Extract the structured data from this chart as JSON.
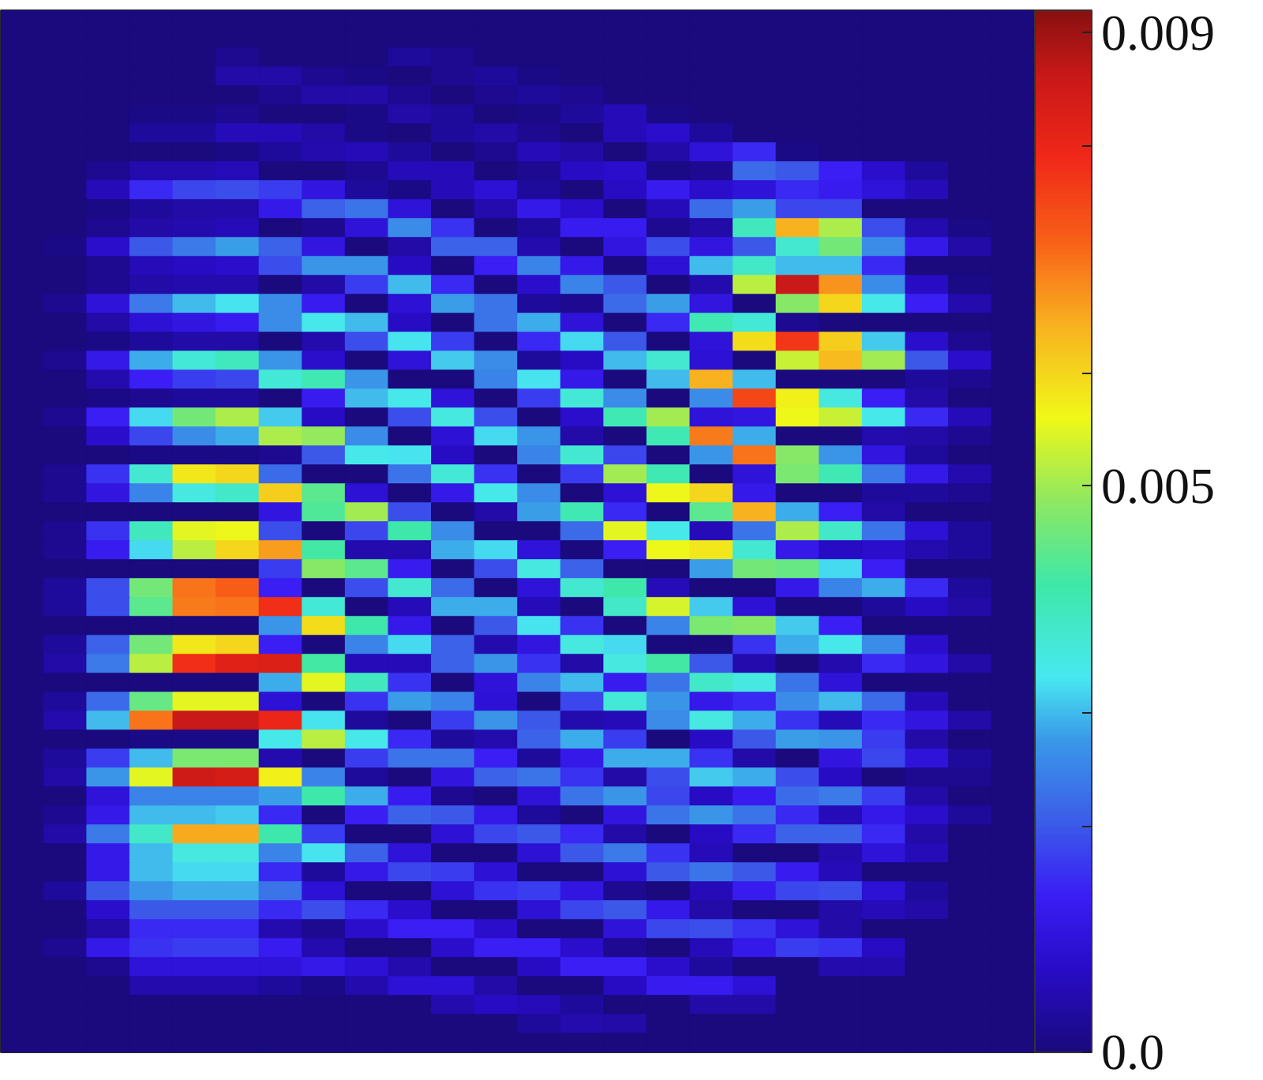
{
  "chart_data": {
    "type": "heatmap",
    "categories": [
      null,
      null,
      null,
      null,
      null,
      null,
      null,
      null,
      null,
      null,
      null,
      null,
      null,
      null,
      null,
      null,
      null,
      null,
      null,
      null,
      null,
      null,
      null,
      null
    ],
    "y_categories": [
      null,
      null,
      null,
      null,
      null,
      null,
      null,
      null,
      null,
      null,
      null,
      null,
      null,
      null,
      null,
      null,
      null,
      null,
      null,
      null,
      null,
      null,
      null,
      null,
      null,
      null,
      null,
      null,
      null,
      null,
      null,
      null,
      null,
      null,
      null,
      null,
      null,
      null,
      null,
      null,
      null,
      null,
      null,
      null,
      null,
      null,
      null,
      null,
      null,
      null,
      null,
      null,
      null,
      null,
      null
    ],
    "cells": [
      [
        0,
        0,
        0,
        0,
        0,
        0,
        0,
        0,
        0,
        0,
        0,
        0,
        0,
        0,
        0,
        0,
        0,
        0,
        0,
        0,
        0,
        0,
        0,
        0
      ],
      [
        0,
        0,
        0,
        0,
        0,
        0,
        0,
        0,
        0,
        0,
        0,
        0,
        0,
        0,
        0,
        0,
        0,
        0,
        0,
        0,
        0,
        0,
        0,
        0
      ],
      [
        0,
        0,
        0,
        0,
        0,
        0.0002,
        0,
        0,
        0,
        0.0003,
        0.0002,
        0,
        0,
        0,
        0,
        0,
        0,
        0,
        0,
        0,
        0,
        0,
        0,
        0
      ],
      [
        0,
        0,
        0,
        0,
        0,
        0.0004,
        0.0004,
        0.0002,
        0.0001,
        0,
        0.0002,
        0.0003,
        0.0001,
        0,
        0,
        0,
        0,
        0,
        0,
        0,
        0,
        0,
        0,
        0
      ],
      [
        0,
        0,
        0,
        0,
        0,
        0,
        0.0002,
        0.0004,
        0.0004,
        0.0002,
        0,
        0.0002,
        0.0003,
        0.0002,
        0,
        0,
        0,
        0,
        0,
        0,
        0,
        0,
        0,
        0
      ],
      [
        0,
        0,
        0,
        0.0001,
        0.0001,
        0.0002,
        0,
        0,
        0.0001,
        0.0004,
        0.0003,
        0,
        0.0001,
        0.0003,
        0.0006,
        0.0001,
        0,
        0,
        0,
        0,
        0,
        0,
        0,
        0
      ],
      [
        0,
        0,
        0,
        0.0003,
        0.0003,
        0.0006,
        0.0006,
        0.0004,
        0.0001,
        0,
        0.0003,
        0.0004,
        0.0002,
        0,
        0.0006,
        0.0008,
        0.0003,
        0,
        0,
        0,
        0,
        0,
        0,
        0
      ],
      [
        0,
        0,
        0,
        0,
        0,
        0.0001,
        0.0003,
        0.0005,
        0.0006,
        0.0003,
        0,
        0.0002,
        0.0006,
        0.0004,
        0,
        0.0004,
        0.001,
        0.0015,
        0.0001,
        0,
        0,
        0,
        0,
        0
      ],
      [
        0,
        0,
        0.0002,
        0.0005,
        0.0005,
        0.0006,
        0,
        0,
        0.0002,
        0.0006,
        0.0006,
        0,
        0.0002,
        0.0007,
        0.0008,
        0.0001,
        0.0002,
        0.0022,
        0.002,
        0.0014,
        0.0008,
        0.0003,
        0,
        0
      ],
      [
        0,
        0,
        0.0006,
        0.0015,
        0.0018,
        0.0019,
        0.0017,
        0.0011,
        0.0003,
        0.0001,
        0.0006,
        0.0009,
        0.0003,
        0,
        0.0007,
        0.0013,
        0.0008,
        0.001,
        0.0015,
        0.0013,
        0.001,
        0.0006,
        0,
        0
      ],
      [
        0,
        0,
        0.0001,
        0.0003,
        0.0004,
        0.0004,
        0.0012,
        0.0021,
        0.0023,
        0.001,
        0,
        0.0005,
        0.0012,
        0.0008,
        0,
        0.0006,
        0.0022,
        0.0028,
        0.0018,
        0.0018,
        0,
        0,
        0,
        0
      ],
      [
        0,
        0,
        0.0002,
        0.0004,
        0.0005,
        0.0006,
        0,
        0.0002,
        0.001,
        0.0026,
        0.0016,
        0,
        0.0003,
        0.0013,
        0.0013,
        0.0002,
        0.0004,
        0.0039,
        0.0064,
        0.0051,
        0.0019,
        0.0005,
        0.0001,
        0
      ],
      [
        0,
        0.0001,
        0.0008,
        0.002,
        0.0024,
        0.0028,
        0.0021,
        0.0011,
        0,
        0.0004,
        0.0021,
        0.0021,
        0.0005,
        0,
        0.0011,
        0.0019,
        0.0011,
        0.002,
        0.0037,
        0.0046,
        0.0026,
        0.0012,
        0.0004,
        0
      ],
      [
        0,
        0,
        0.0002,
        0.0006,
        0.0007,
        0.0008,
        0.0019,
        0.0027,
        0.0027,
        0.0007,
        0,
        0.0014,
        0.0025,
        0.0012,
        0,
        0.0009,
        0.003,
        0.0038,
        0.003,
        0.003,
        0.0015,
        0,
        0,
        0
      ],
      [
        0,
        0,
        0.0002,
        0.0004,
        0.0005,
        0.0005,
        0,
        0.0004,
        0.0017,
        0.003,
        0.0015,
        0,
        0.0008,
        0.0025,
        0.002,
        0,
        0.0005,
        0.0052,
        0.0086,
        0.0067,
        0.0026,
        0.0007,
        0.0001,
        0
      ],
      [
        0,
        0.0002,
        0.001,
        0.0024,
        0.003,
        0.0033,
        0.0026,
        0.0013,
        0,
        0.0009,
        0.0028,
        0.0023,
        0.0003,
        0.0002,
        0.0022,
        0.0028,
        0.0011,
        0,
        0.0048,
        0.006,
        0.0034,
        0.0014,
        0.0005,
        0
      ],
      [
        0,
        0,
        0.0004,
        0.0009,
        0.0011,
        0.0013,
        0.0026,
        0.0034,
        0.003,
        0.0007,
        0,
        0.0023,
        0.0029,
        0.001,
        0,
        0.0015,
        0.004,
        0.0036,
        0.0002,
        0,
        0,
        0,
        0,
        0
      ],
      [
        0,
        0,
        0.0001,
        0.0003,
        0.0004,
        0.0004,
        0,
        0.0005,
        0.0019,
        0.0033,
        0.0017,
        0,
        0.0015,
        0.0032,
        0.002,
        0,
        0.001,
        0.0059,
        0.0077,
        0.0061,
        0.0031,
        0.0008,
        0.0002,
        0
      ],
      [
        0,
        0.0002,
        0.0012,
        0.0029,
        0.0036,
        0.0039,
        0.0027,
        0.0008,
        0,
        0.001,
        0.0031,
        0.0026,
        0.0003,
        0.0007,
        0.003,
        0.0037,
        0.0009,
        0,
        0.0053,
        0.0063,
        0.005,
        0.002,
        0.0008,
        0
      ],
      [
        0,
        0,
        0.0005,
        0.0014,
        0.0017,
        0.0018,
        0.0036,
        0.004,
        0.0027,
        0,
        0,
        0.0025,
        0.0033,
        0.0012,
        0,
        0.003,
        0.0064,
        0.003,
        0,
        0,
        0,
        0.0003,
        0.0002,
        0
      ],
      [
        0,
        0,
        0.0001,
        0.0002,
        0.0003,
        0.0003,
        0,
        0.0013,
        0.003,
        0.0034,
        0.001,
        0,
        0.0017,
        0.0036,
        0.0026,
        0,
        0.0026,
        0.0075,
        0.0057,
        0.0035,
        0.0014,
        0.0004,
        0,
        0
      ],
      [
        0,
        0.0002,
        0.0014,
        0.0032,
        0.0046,
        0.0051,
        0.0031,
        0.0007,
        0,
        0.0019,
        0.0035,
        0.0019,
        0,
        0.0008,
        0.004,
        0.005,
        0.001,
        0.0011,
        0.0056,
        0.0053,
        0.0034,
        0.0015,
        0.0006,
        0
      ],
      [
        0,
        0,
        0.0008,
        0.0018,
        0.0026,
        0.0029,
        0.0051,
        0.0049,
        0.0026,
        0,
        0.0009,
        0.0032,
        0.0027,
        0.0004,
        0,
        0.004,
        0.0069,
        0.0029,
        0,
        0,
        0.0005,
        0.0004,
        0.0002,
        0
      ],
      [
        0,
        0,
        0,
        0.0001,
        0.0001,
        0.0001,
        0.0002,
        0.002,
        0.0034,
        0.0033,
        0.0007,
        0,
        0.0025,
        0.0037,
        0.0018,
        0,
        0.0027,
        0.007,
        0.0048,
        0.0027,
        0.0011,
        0.0003,
        0,
        0
      ],
      [
        0,
        0.0002,
        0.0016,
        0.0037,
        0.0058,
        0.006,
        0.0022,
        0,
        0,
        0.0023,
        0.0036,
        0.0016,
        0,
        0.0017,
        0.005,
        0.004,
        0,
        0.001,
        0.0047,
        0.004,
        0.0024,
        0.0012,
        0.0005,
        0
      ],
      [
        0,
        0.0002,
        0.0011,
        0.0025,
        0.0035,
        0.0038,
        0.0061,
        0.0044,
        0.0009,
        0,
        0.0012,
        0.0034,
        0.0026,
        0,
        0.0009,
        0.0056,
        0.006,
        0.0012,
        0,
        0,
        0.0003,
        0.0003,
        0.0002,
        0
      ],
      [
        0,
        0,
        0,
        0,
        0,
        0,
        0.0011,
        0.0043,
        0.005,
        0.0019,
        0,
        0.0004,
        0.0028,
        0.004,
        0.0015,
        0,
        0.0044,
        0.0064,
        0.0029,
        0.0014,
        0.0004,
        0,
        0,
        0
      ],
      [
        0,
        0.0002,
        0.0016,
        0.0039,
        0.0055,
        0.0056,
        0.0019,
        0,
        0.0018,
        0.0041,
        0.0026,
        0,
        0,
        0.0022,
        0.0055,
        0.0034,
        0.0006,
        0.0023,
        0.0051,
        0.0038,
        0.0023,
        0.0009,
        0.0003,
        0
      ],
      [
        0,
        0.0002,
        0.0013,
        0.0032,
        0.0052,
        0.006,
        0.0066,
        0.0042,
        0.0005,
        0.0005,
        0.0029,
        0.0032,
        0.001,
        0,
        0.0014,
        0.0056,
        0.0058,
        0.0037,
        0.0012,
        0.0007,
        0.0008,
        0.0005,
        0.0003,
        0
      ],
      [
        0,
        0,
        0,
        0,
        0,
        0,
        0.0017,
        0.0048,
        0.0044,
        0.0013,
        0,
        0.0019,
        0.0035,
        0.0021,
        0,
        0,
        0.0028,
        0.0046,
        0.0045,
        0.0032,
        0.0014,
        0,
        0,
        0
      ],
      [
        0,
        0.0003,
        0.0019,
        0.0046,
        0.007,
        0.0072,
        0.0014,
        0,
        0.0019,
        0.0037,
        0.0022,
        0,
        0.001,
        0.0037,
        0.0041,
        0.0006,
        0,
        0,
        0.0012,
        0.0025,
        0.0029,
        0.0015,
        0.0003,
        0
      ],
      [
        0,
        0.0003,
        0.0019,
        0.0044,
        0.0069,
        0.007,
        0.0078,
        0.0036,
        0,
        0.0006,
        0.0029,
        0.0029,
        0.0006,
        0,
        0.0038,
        0.0054,
        0.0031,
        0.0009,
        0,
        0,
        0.0003,
        0.0007,
        0.0004,
        0
      ],
      [
        0,
        0,
        0,
        0,
        0,
        0,
        0.0027,
        0.0059,
        0.0041,
        0.0012,
        0,
        0.002,
        0.0033,
        0.0016,
        0,
        0.0025,
        0.0047,
        0.0048,
        0.0031,
        0.0014,
        0,
        0,
        0,
        0
      ],
      [
        0,
        0.0003,
        0.0021,
        0.0046,
        0.0058,
        0.006,
        0.0014,
        0,
        0.0025,
        0.0032,
        0.0021,
        0.0005,
        0.0011,
        0.0035,
        0.0032,
        0,
        0,
        0.0016,
        0.0029,
        0.0034,
        0.0026,
        0.0008,
        0,
        0
      ],
      [
        0,
        0.0004,
        0.0024,
        0.0052,
        0.0078,
        0.0082,
        0.0083,
        0.0042,
        0.0006,
        0.0006,
        0.0021,
        0.0027,
        0.0016,
        0.0004,
        0.0035,
        0.0042,
        0.002,
        0.0005,
        0,
        0.0005,
        0.0015,
        0.0011,
        0.0004,
        0
      ],
      [
        0,
        0,
        0,
        0,
        0,
        0,
        0.0029,
        0.0055,
        0.0039,
        0.0016,
        0,
        0.001,
        0.0025,
        0.003,
        0.0013,
        0.0023,
        0.0038,
        0.0035,
        0.0023,
        0.001,
        0,
        0,
        0,
        0
      ],
      [
        0,
        0.0003,
        0.0022,
        0.0045,
        0.0055,
        0.0055,
        0.0009,
        0,
        0.0016,
        0.0028,
        0.0025,
        0.0009,
        0,
        0.0018,
        0.0036,
        0.0027,
        0.0012,
        0.0015,
        0.0026,
        0.003,
        0.0022,
        0.0006,
        0,
        0
      ],
      [
        0,
        0.0005,
        0.003,
        0.007,
        0.0086,
        0.0086,
        0.008,
        0.0033,
        0.0003,
        0,
        0.0017,
        0.0027,
        0.002,
        0.0005,
        0.0006,
        0.0026,
        0.0035,
        0.0029,
        0.0016,
        0.0006,
        0.0015,
        0.0011,
        0.0004,
        0
      ],
      [
        0,
        0,
        0,
        0.0001,
        0.0001,
        0.0001,
        0.0034,
        0.0052,
        0.0034,
        0.0015,
        0.0003,
        0.0005,
        0.0021,
        0.0029,
        0.0017,
        0,
        0.0007,
        0.002,
        0.0028,
        0.0027,
        0.0017,
        0.0004,
        0,
        0
      ],
      [
        0,
        0.0003,
        0.0017,
        0.003,
        0.0047,
        0.0047,
        0.0005,
        0,
        0.0017,
        0.0023,
        0.0023,
        0.0014,
        0.0003,
        0.0012,
        0.0029,
        0.0029,
        0.0016,
        0.0004,
        0,
        0.0011,
        0.0018,
        0.001,
        0.0003,
        0
      ],
      [
        0,
        0.0004,
        0.0027,
        0.0055,
        0.0085,
        0.0084,
        0.0057,
        0.0025,
        0.0003,
        0,
        0.0011,
        0.0021,
        0.0023,
        0.0016,
        0.0004,
        0.0019,
        0.0031,
        0.0029,
        0.0019,
        0.0007,
        0,
        0.0002,
        0.0002,
        0
      ],
      [
        0,
        0,
        0.001,
        0.0025,
        0.0025,
        0.0025,
        0.0028,
        0.0041,
        0.0029,
        0.0013,
        0.0002,
        0,
        0.001,
        0.0023,
        0.0027,
        0.0018,
        0.0007,
        0.0013,
        0.0022,
        0.0024,
        0.0017,
        0.0004,
        0,
        0
      ],
      [
        0,
        0.0002,
        0.0012,
        0.003,
        0.003,
        0.0031,
        0.0015,
        0,
        0.0014,
        0.0021,
        0.002,
        0.0012,
        0.0003,
        0,
        0.0011,
        0.0023,
        0.0027,
        0.0023,
        0.0015,
        0.0006,
        0.0012,
        0.0008,
        0.0003,
        0
      ],
      [
        0,
        0.0004,
        0.0024,
        0.0038,
        0.0065,
        0.0065,
        0.0041,
        0.0017,
        0,
        0,
        0.0009,
        0.0018,
        0.002,
        0.0015,
        0.0004,
        0,
        0.0007,
        0.0015,
        0.0021,
        0.0021,
        0.0015,
        0.0004,
        0,
        0
      ],
      [
        0,
        0,
        0.0012,
        0.003,
        0.0035,
        0.0035,
        0.0025,
        0.0033,
        0.0021,
        0.001,
        0,
        0,
        0.0009,
        0.002,
        0.0024,
        0.0016,
        0.0006,
        0,
        0,
        0.0005,
        0.001,
        0.0006,
        0,
        0
      ],
      [
        0,
        0,
        0.0012,
        0.003,
        0.0032,
        0.0032,
        0.0015,
        0.0003,
        0.0012,
        0.0018,
        0.0017,
        0.0009,
        0,
        0,
        0.0009,
        0.002,
        0.0023,
        0.002,
        0.0013,
        0.0006,
        0,
        0,
        0,
        0
      ],
      [
        0,
        0.0003,
        0.002,
        0.0027,
        0.0029,
        0.0029,
        0.0023,
        0.0009,
        0,
        0,
        0.0009,
        0.0016,
        0.0017,
        0.0011,
        0.0002,
        0,
        0.0006,
        0.0013,
        0.0018,
        0.0019,
        0.0009,
        0.0003,
        0,
        0
      ],
      [
        0,
        0,
        0.0008,
        0.002,
        0.002,
        0.002,
        0.0015,
        0.0019,
        0.0015,
        0.0008,
        0,
        0,
        0.0009,
        0.0018,
        0.002,
        0.0012,
        0.0004,
        0,
        0,
        0.0004,
        0.0006,
        0.0004,
        0,
        0
      ],
      [
        0,
        0,
        0.0004,
        0.0015,
        0.0015,
        0.0015,
        0.0005,
        0.0002,
        0.0008,
        0.0014,
        0.0014,
        0.0008,
        0,
        0,
        0.001,
        0.0018,
        0.0019,
        0.0016,
        0.001,
        0.0004,
        0,
        0,
        0,
        0
      ],
      [
        0,
        0.0002,
        0.0012,
        0.0016,
        0.0017,
        0.0017,
        0.0013,
        0.0005,
        0,
        0,
        0.0008,
        0.0014,
        0.0014,
        0.0008,
        0.0002,
        0,
        0.0006,
        0.0012,
        0.0017,
        0.0016,
        0.0007,
        0,
        0,
        0
      ],
      [
        0,
        0,
        0.0002,
        0.001,
        0.001,
        0.001,
        0.001,
        0.0012,
        0.0009,
        0.0005,
        0,
        0,
        0.0007,
        0.0014,
        0.0014,
        0.0008,
        0.0003,
        0,
        0,
        0.0005,
        0.0005,
        0,
        0,
        0
      ],
      [
        0,
        0,
        0,
        0.0005,
        0.0005,
        0.0005,
        0.0003,
        0.0001,
        0.0005,
        0.0009,
        0.0009,
        0.0004,
        0,
        0,
        0.0007,
        0.0013,
        0.0013,
        0.0009,
        0,
        0,
        0,
        0,
        0,
        0
      ],
      [
        0,
        0,
        0,
        0,
        0,
        0,
        0,
        0,
        0,
        0,
        0.0005,
        0.0007,
        0.0006,
        0.0003,
        0,
        0,
        0.0004,
        0.0004,
        0,
        0,
        0,
        0,
        0,
        0
      ],
      [
        0,
        0,
        0,
        0,
        0,
        0,
        0,
        0,
        0,
        0,
        0,
        0,
        0.0003,
        0.0005,
        0.0004,
        0,
        0,
        0,
        0,
        0,
        0,
        0,
        0,
        0
      ],
      [
        0,
        0,
        0,
        0,
        0,
        0,
        0,
        0,
        0,
        0,
        0,
        0,
        0,
        0,
        0,
        0,
        0,
        0,
        0,
        0,
        0,
        0,
        0,
        0
      ]
    ],
    "clim": [
      0,
      0.0092
    ],
    "cticks": [
      {
        "value": 0,
        "label": "0.0"
      },
      {
        "value": 0.002,
        "label": null
      },
      {
        "value": 0.003,
        "label": null
      },
      0.005,
      {
        "value": 0.006,
        "label": null
      },
      {
        "value": 0.008,
        "label": null
      },
      0.009
    ],
    "tick_labels": false
  }
}
